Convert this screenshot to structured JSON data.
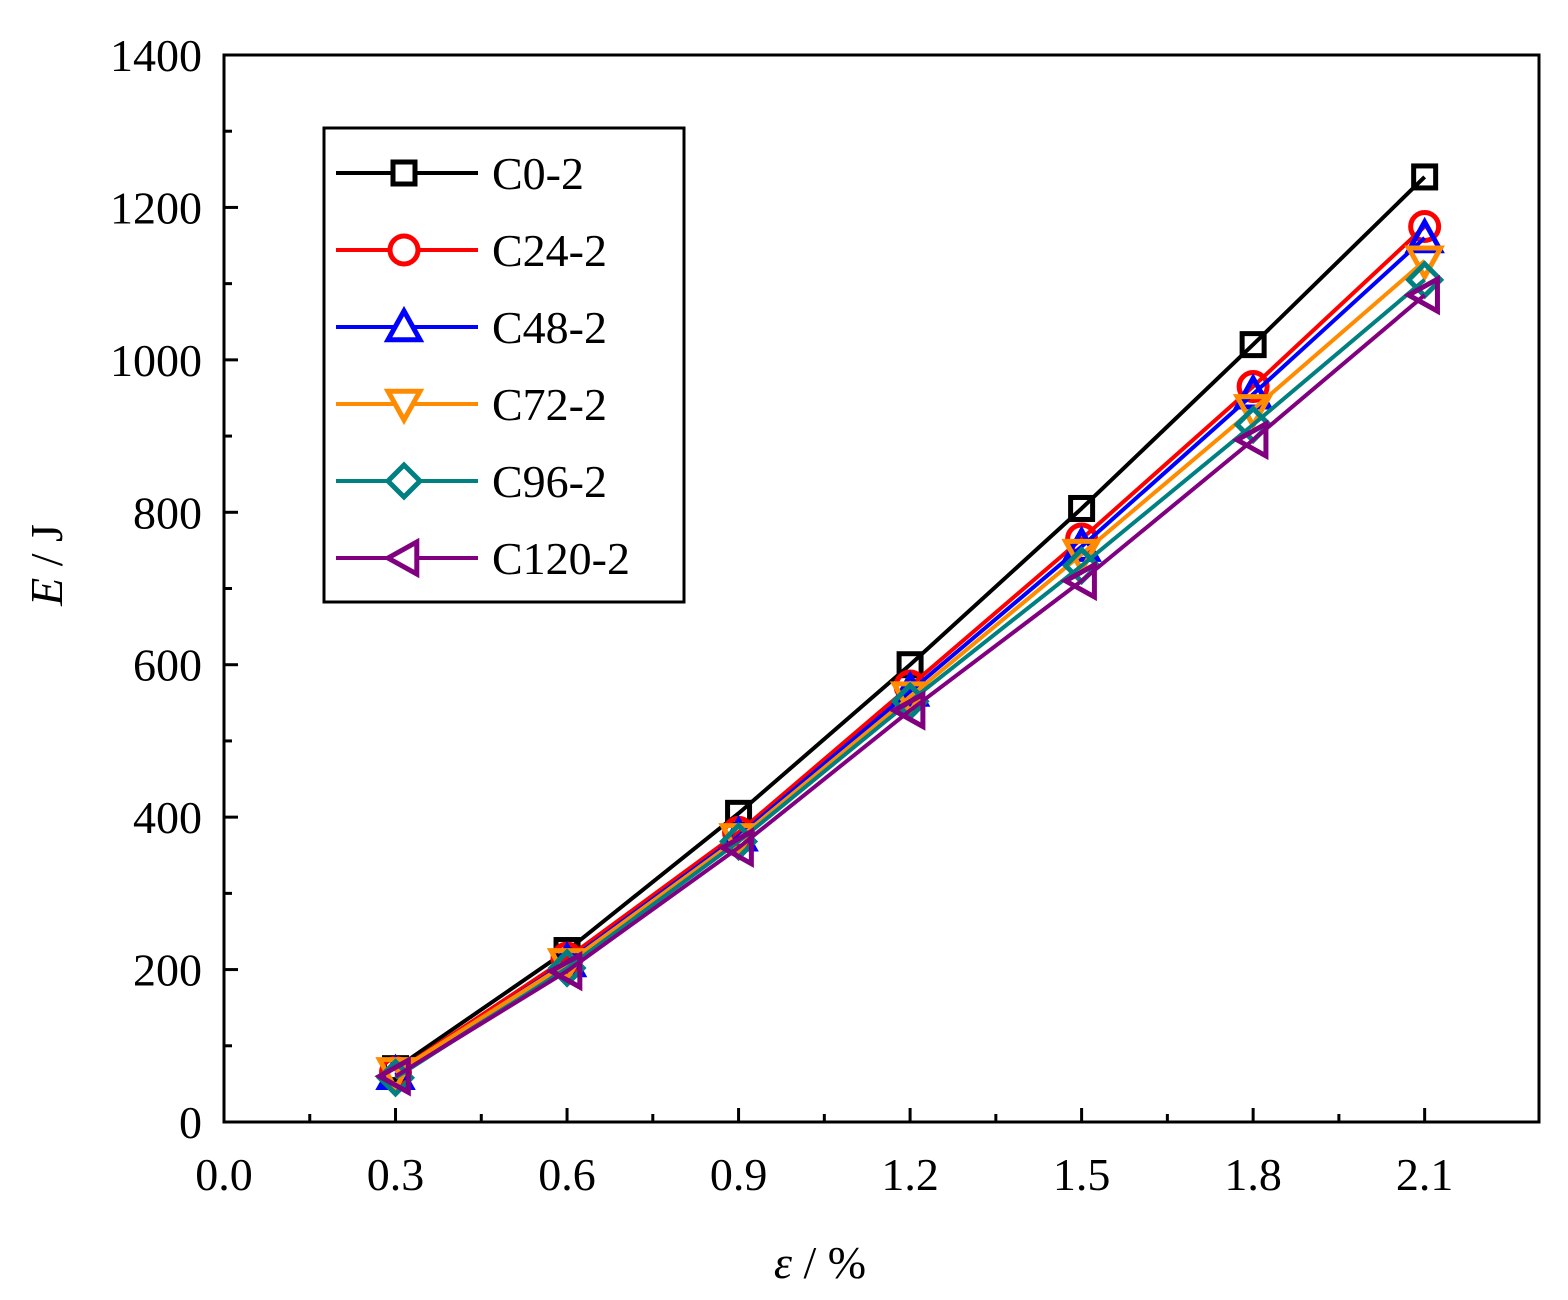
{
  "chart_data": {
    "type": "line",
    "xlabel": "ε / %",
    "xlabel_var": "ε",
    "xlabel_unit": " / %",
    "ylabel": "E / J",
    "ylabel_var": "E",
    "ylabel_unit": " / J",
    "xlim": [
      0.0,
      2.3
    ],
    "ylim": [
      0,
      1400
    ],
    "xticks": [
      0.0,
      0.3,
      0.6,
      0.9,
      1.2,
      1.5,
      1.8,
      2.1
    ],
    "xtick_labels": [
      "0.0",
      "0.3",
      "0.6",
      "0.9",
      "1.2",
      "1.5",
      "1.8",
      "2.1"
    ],
    "yticks": [
      0,
      200,
      400,
      600,
      800,
      1000,
      1200,
      1400
    ],
    "ytick_labels": [
      "0",
      "200",
      "400",
      "600",
      "800",
      "1000",
      "1200",
      "1400"
    ],
    "x": [
      0.3,
      0.6,
      0.9,
      1.2,
      1.5,
      1.8,
      2.1
    ],
    "legend_position": "top-left",
    "series": [
      {
        "name": "C0-2",
        "color": "#000000",
        "marker": "square",
        "values": [
          70,
          225,
          405,
          600,
          805,
          1020,
          1240
        ]
      },
      {
        "name": "C24-2",
        "color": "#ff0000",
        "marker": "circle",
        "values": [
          65,
          215,
          380,
          572,
          765,
          965,
          1175
        ]
      },
      {
        "name": "C48-2",
        "color": "#0000ff",
        "marker": "triangle-up",
        "values": [
          62,
          210,
          375,
          565,
          755,
          955,
          1160
        ]
      },
      {
        "name": "C72-2",
        "color": "#ff8c00",
        "marker": "triangle-down",
        "values": [
          65,
          208,
          372,
          558,
          745,
          935,
          1130
        ]
      },
      {
        "name": "C96-2",
        "color": "#008080",
        "marker": "diamond",
        "values": [
          58,
          202,
          368,
          552,
          730,
          915,
          1105
        ]
      },
      {
        "name": "C120-2",
        "color": "#800080",
        "marker": "triangle-left",
        "values": [
          60,
          198,
          360,
          540,
          710,
          895,
          1085
        ]
      }
    ]
  }
}
